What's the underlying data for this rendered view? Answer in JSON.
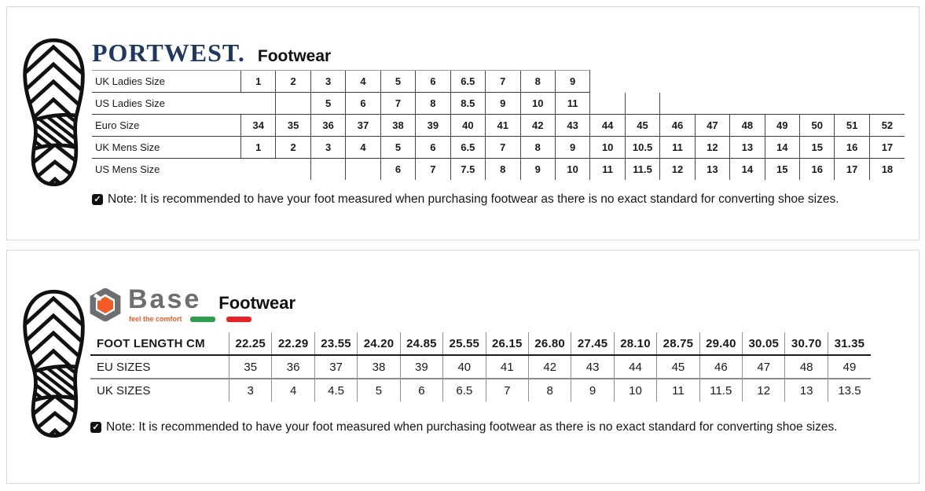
{
  "portwest": {
    "brand": "PORTWEST.",
    "product_line": "Footwear",
    "logo_icon": "boot-sole-print",
    "note_icon": "checkmark-box",
    "note_icon_glyph": "✓",
    "note": "Note: It is recommended to have your foot measured when purchasing footwear as there is no exact standard for converting shoe sizes.",
    "table": {
      "columns": 19,
      "rows": [
        {
          "label": "UK Ladies Size",
          "start": 0,
          "values": [
            "1",
            "2",
            "3",
            "4",
            "5",
            "6",
            "6.5",
            "7",
            "8",
            "9"
          ]
        },
        {
          "label": "US Ladies Size",
          "start": 0,
          "values": [
            "",
            "",
            "5",
            "6",
            "7",
            "8",
            "8.5",
            "9",
            "10",
            "11",
            "",
            ""
          ],
          "open_top": [
            10,
            11
          ],
          "no_left": [
            0
          ]
        },
        {
          "label": "Euro Size",
          "start": 0,
          "values": [
            "34",
            "35",
            "36",
            "37",
            "38",
            "39",
            "40",
            "41",
            "42",
            "43",
            "44",
            "45",
            "46",
            "47",
            "48",
            "49",
            "50",
            "51",
            "52"
          ]
        },
        {
          "label": "UK Mens Size",
          "start": 0,
          "values": [
            "1",
            "2",
            "3",
            "4",
            "5",
            "6",
            "6.5",
            "7",
            "8",
            "9",
            "10",
            "10.5",
            "11",
            "12",
            "13",
            "14",
            "15",
            "16",
            "17"
          ]
        },
        {
          "label": "US Mens Size",
          "start": 2,
          "values": [
            "",
            "",
            "6",
            "7",
            "7.5",
            "8",
            "9",
            "10",
            "11",
            "11.5",
            "12",
            "13",
            "14",
            "15",
            "16",
            "17",
            "18"
          ]
        }
      ]
    }
  },
  "base": {
    "brand": "Base",
    "tagline": "feel the comfort",
    "product_line": "Footwear",
    "logo_icon": "hex-nut-with-orange-hexagon",
    "flag_colors": {
      "green": "#2f9e4e",
      "red": "#e52329"
    },
    "brand_colors": {
      "gray": "#6d6e71",
      "orange": "#f15b24"
    },
    "note_icon": "checkmark-box",
    "note_icon_glyph": "✓",
    "note": "Note: It is recommended to have your foot measured when purchasing footwear as there is no exact standard for converting shoe sizes.",
    "table": {
      "rows": [
        {
          "label": "FOOT LENGTH CM",
          "bold": true,
          "values": [
            "22.25",
            "22.29",
            "23.55",
            "24.20",
            "24.85",
            "25.55",
            "26.15",
            "26.80",
            "27.45",
            "28.10",
            "28.75",
            "29.40",
            "30.05",
            "30.70",
            "31.35"
          ]
        },
        {
          "label": "EU SIZES",
          "values": [
            "35",
            "36",
            "37",
            "38",
            "39",
            "40",
            "41",
            "42",
            "43",
            "44",
            "45",
            "46",
            "47",
            "48",
            "49"
          ]
        },
        {
          "label": "UK SIZES",
          "values": [
            "3",
            "4",
            "4.5",
            "5",
            "6",
            "6.5",
            "7",
            "8",
            "9",
            "10",
            "11",
            "11.5",
            "12",
            "13",
            "13.5"
          ]
        }
      ]
    }
  }
}
